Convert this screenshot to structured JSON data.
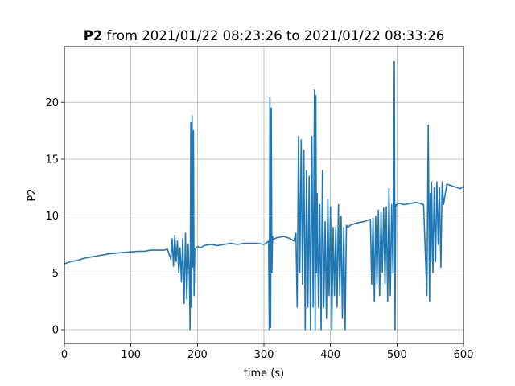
{
  "chart_data": {
    "type": "line",
    "title_bold": "P2",
    "title_rest": " from 2021/01/22 08:23:26 to 2021/01/22 08:33:26",
    "xlabel": "time (s)",
    "ylabel": "P2",
    "xlim": [
      0,
      600
    ],
    "ylim": [
      -1.2,
      24.9
    ],
    "xticks": [
      0,
      100,
      200,
      300,
      400,
      500,
      600
    ],
    "yticks": [
      0,
      5,
      10,
      15,
      20
    ],
    "grid": true,
    "color": "#1f77b4",
    "series": [
      {
        "x": [
          0,
          10,
          20,
          30,
          40,
          50,
          60,
          70,
          80,
          90,
          100,
          110,
          120,
          130,
          140,
          150,
          155,
          160,
          162,
          164,
          166,
          168,
          170,
          172,
          174,
          176,
          178,
          180,
          182,
          184,
          186,
          188,
          189,
          190,
          191,
          192,
          193,
          194,
          195,
          196,
          198,
          200,
          205,
          210,
          220,
          230,
          240,
          250,
          260,
          270,
          280,
          290,
          300,
          305,
          307,
          308,
          309,
          310,
          311,
          312,
          313,
          314,
          316,
          320,
          330,
          340,
          345,
          348,
          350,
          352,
          354,
          356,
          358,
          360,
          362,
          364,
          366,
          368,
          370,
          372,
          374,
          376,
          377,
          378,
          379,
          380,
          382,
          384,
          386,
          388,
          390,
          392,
          394,
          396,
          398,
          400,
          402,
          404,
          406,
          408,
          410,
          412,
          414,
          416,
          418,
          420,
          422,
          424,
          426,
          430,
          440,
          450,
          455,
          460,
          462,
          464,
          466,
          468,
          470,
          472,
          474,
          476,
          478,
          480,
          482,
          484,
          486,
          488,
          490,
          492,
          494,
          496,
          497,
          498,
          499,
          500,
          502,
          505,
          510,
          520,
          530,
          540,
          545,
          547,
          549,
          550,
          551,
          552,
          554,
          556,
          558,
          560,
          562,
          564,
          566,
          568,
          570,
          575,
          580,
          585,
          590,
          595,
          600
        ],
        "y": [
          5.8,
          6.0,
          6.1,
          6.3,
          6.4,
          6.5,
          6.6,
          6.7,
          6.75,
          6.8,
          6.85,
          6.9,
          6.9,
          7.0,
          7.0,
          7.0,
          7.1,
          6.2,
          8.0,
          5.6,
          8.3,
          6.0,
          7.8,
          5.0,
          7.2,
          4.2,
          8.0,
          2.3,
          8.5,
          2.7,
          7.5,
          4.5,
          0.0,
          18.2,
          2.0,
          18.8,
          5.5,
          17.5,
          3.0,
          7.0,
          7.2,
          7.3,
          7.2,
          7.4,
          7.5,
          7.4,
          7.5,
          7.6,
          7.5,
          7.6,
          7.6,
          7.6,
          7.5,
          7.7,
          7.8,
          0.0,
          20.4,
          0.2,
          19.5,
          5.0,
          8.2,
          7.9,
          8.0,
          8.1,
          8.2,
          8.0,
          7.8,
          8.5,
          2.0,
          17.0,
          5.0,
          16.7,
          4.0,
          15.8,
          0.0,
          14.0,
          2.0,
          13.5,
          0.0,
          17.0,
          2.0,
          21.1,
          0.0,
          20.6,
          5.0,
          12.0,
          2.0,
          11.0,
          0.0,
          14.0,
          2.0,
          9.5,
          1.0,
          11.5,
          3.0,
          10.8,
          0.0,
          9.0,
          3.0,
          9.0,
          2.0,
          11.0,
          3.0,
          10.0,
          1.0,
          9.0,
          0.0,
          9.2,
          9.0,
          9.2,
          9.4,
          9.5,
          9.6,
          9.7,
          4.0,
          9.8,
          2.5,
          10.0,
          4.0,
          10.5,
          3.0,
          10.3,
          5.0,
          10.7,
          4.0,
          10.8,
          2.5,
          12.4,
          3.0,
          11.0,
          5.0,
          23.6,
          0.0,
          11.0,
          10.9,
          11.0,
          11.1,
          11.1,
          11.0,
          11.1,
          11.2,
          11.0,
          3.0,
          18.0,
          2.5,
          12.0,
          6.0,
          13.0,
          5.0,
          12.5,
          6.0,
          13.0,
          7.5,
          12.5,
          5.5,
          13.0,
          11.0,
          12.8,
          12.7,
          12.6,
          12.5,
          12.4,
          12.6
        ]
      }
    ]
  }
}
